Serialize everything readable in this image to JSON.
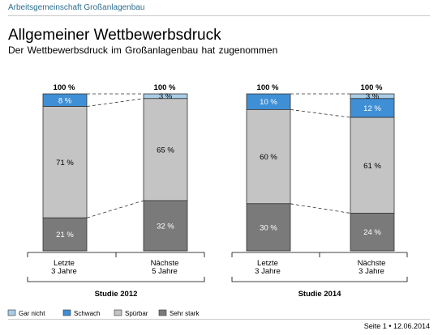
{
  "header": {
    "org": "Arbeitsgemeinschaft Großanlagenbau",
    "title": "Allgemeiner Wettbewerbsdruck",
    "subtitle": "Der Wettbewerbsdruck im Großanlagenbau hat zugenommen"
  },
  "footer": {
    "page": "Seite 1 • 12.06.2014"
  },
  "chart_data": {
    "type": "bar",
    "stacked": true,
    "percent_stacked": true,
    "total_label": "100 %",
    "groups": [
      {
        "name": "Studie 2012",
        "bars": [
          {
            "label": [
              "Letzte",
              "3 Jahre"
            ],
            "values": [
              0,
              8,
              71,
              21
            ]
          },
          {
            "label": [
              "Nächste",
              "5 Jahre"
            ],
            "values": [
              3,
              0,
              65,
              32
            ]
          }
        ]
      },
      {
        "name": "Studie 2014",
        "bars": [
          {
            "label": [
              "Letzte",
              "3 Jahre"
            ],
            "values": [
              0,
              10,
              60,
              30
            ]
          },
          {
            "label": [
              "Nächste",
              "3 Jahre"
            ],
            "values": [
              3,
              12,
              61,
              24
            ]
          }
        ]
      }
    ],
    "series": [
      {
        "name": "Gar nicht",
        "color": "#a9cce6"
      },
      {
        "name": "Schwach",
        "color": "#3f8fd6"
      },
      {
        "name": "Spürbar",
        "color": "#c4c4c4"
      },
      {
        "name": "Sehr stark",
        "color": "#7a7a7a"
      }
    ],
    "ylim": [
      0,
      100
    ],
    "legend": "bottom-left"
  }
}
